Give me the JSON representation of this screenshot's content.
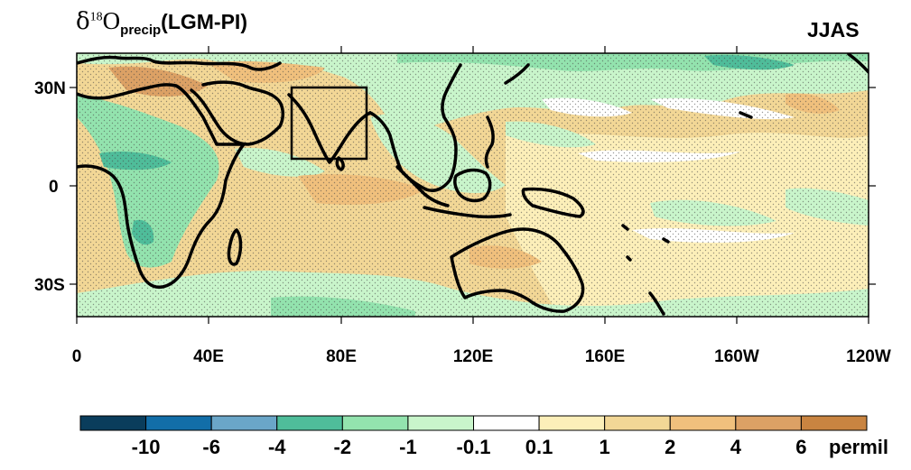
{
  "title": {
    "symbol": "δ",
    "superscript": "18",
    "letter": "O",
    "subscript": "precip",
    "suffix": "(LGM-PI)"
  },
  "season": "JJAS",
  "lat_ticks": [
    "30N",
    "0",
    "30S"
  ],
  "lon_ticks": [
    "0",
    "40E",
    "80E",
    "120E",
    "160E",
    "160W",
    "120W"
  ],
  "colorbar": {
    "colors": [
      "#0a3d5c",
      "#126ea8",
      "#6aa6c8",
      "#4fbd9a",
      "#93e3ae",
      "#c9f5cb",
      "#ffffff",
      "#fcefb9",
      "#f2d796",
      "#f0c07d",
      "#dca165",
      "#c98441"
    ],
    "labels": [
      "-10",
      "-6",
      "-4",
      "-2",
      "-1",
      "-0.1",
      "0.1",
      "1",
      "2",
      "4",
      "6"
    ],
    "units": "permil"
  },
  "field_colors": {
    "pos_light": "#fcefb9",
    "pos_mid": "#f2d796",
    "pos_strong": "#f0c07d",
    "pos_vstrong": "#dca165",
    "neg_light": "#c9f5cb",
    "neg_mid": "#93e3ae",
    "neg_strong": "#4fbd9a",
    "neutral": "#ffffff"
  }
}
